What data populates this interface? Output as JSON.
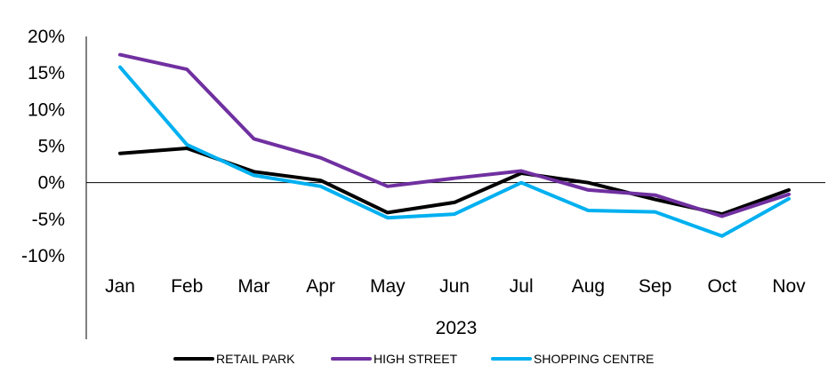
{
  "chart_data": {
    "type": "line",
    "title": "",
    "xlabel": "",
    "ylabel": "",
    "categories": [
      "Jan",
      "Feb",
      "Mar",
      "Apr",
      "May",
      "Jun",
      "Jul",
      "Aug",
      "Sep",
      "Oct",
      "Nov"
    ],
    "x_group_label": "2023",
    "y_ticks": [
      "20%",
      "15%",
      "10%",
      "5%",
      "0%",
      "-5%",
      "-10%"
    ],
    "ylim": [
      -10,
      20
    ],
    "y_unit": "%",
    "grid": false,
    "legend_position": "bottom",
    "series": [
      {
        "name": "RETAIL PARK",
        "color": "#000000",
        "values": [
          4.0,
          4.7,
          1.5,
          0.3,
          -4.1,
          -2.7,
          1.3,
          0.0,
          -2.3,
          -4.3,
          -1.0
        ]
      },
      {
        "name": "HIGH STREET",
        "color": "#7030A0",
        "values": [
          17.5,
          15.5,
          6.0,
          3.4,
          -0.5,
          0.6,
          1.6,
          -1.0,
          -1.7,
          -4.6,
          -1.6
        ]
      },
      {
        "name": "SHOPPING CENTRE",
        "color": "#00B0F0",
        "values": [
          15.8,
          5.2,
          1.0,
          -0.5,
          -4.8,
          -4.3,
          0.0,
          -3.8,
          -4.0,
          -7.3,
          -2.2
        ]
      }
    ]
  }
}
